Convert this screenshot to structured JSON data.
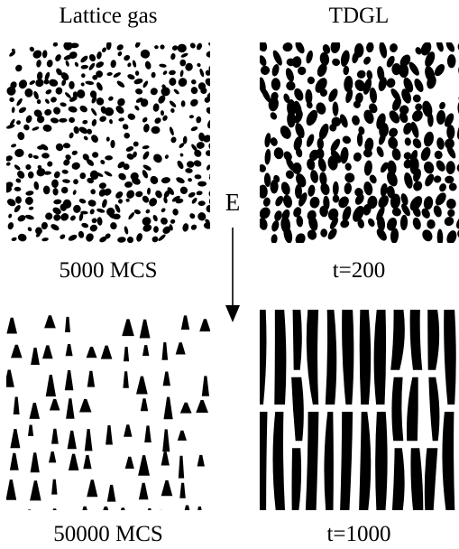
{
  "headers": {
    "left": "Lattice gas",
    "right": "TDGL"
  },
  "panels": [
    {
      "id": "tl",
      "caption": "5000 MCS",
      "pattern": "small-droplets"
    },
    {
      "id": "tr",
      "caption": "t=200",
      "pattern": "small-blobs"
    },
    {
      "id": "bl",
      "caption": "50000 MCS",
      "pattern": "triangular-droplets"
    },
    {
      "id": "br",
      "caption": "t=1000",
      "pattern": "vertical-stripes"
    }
  ],
  "field": {
    "label": "E",
    "direction": "down"
  },
  "colors": {
    "ink": "#000000",
    "background": "#ffffff"
  }
}
